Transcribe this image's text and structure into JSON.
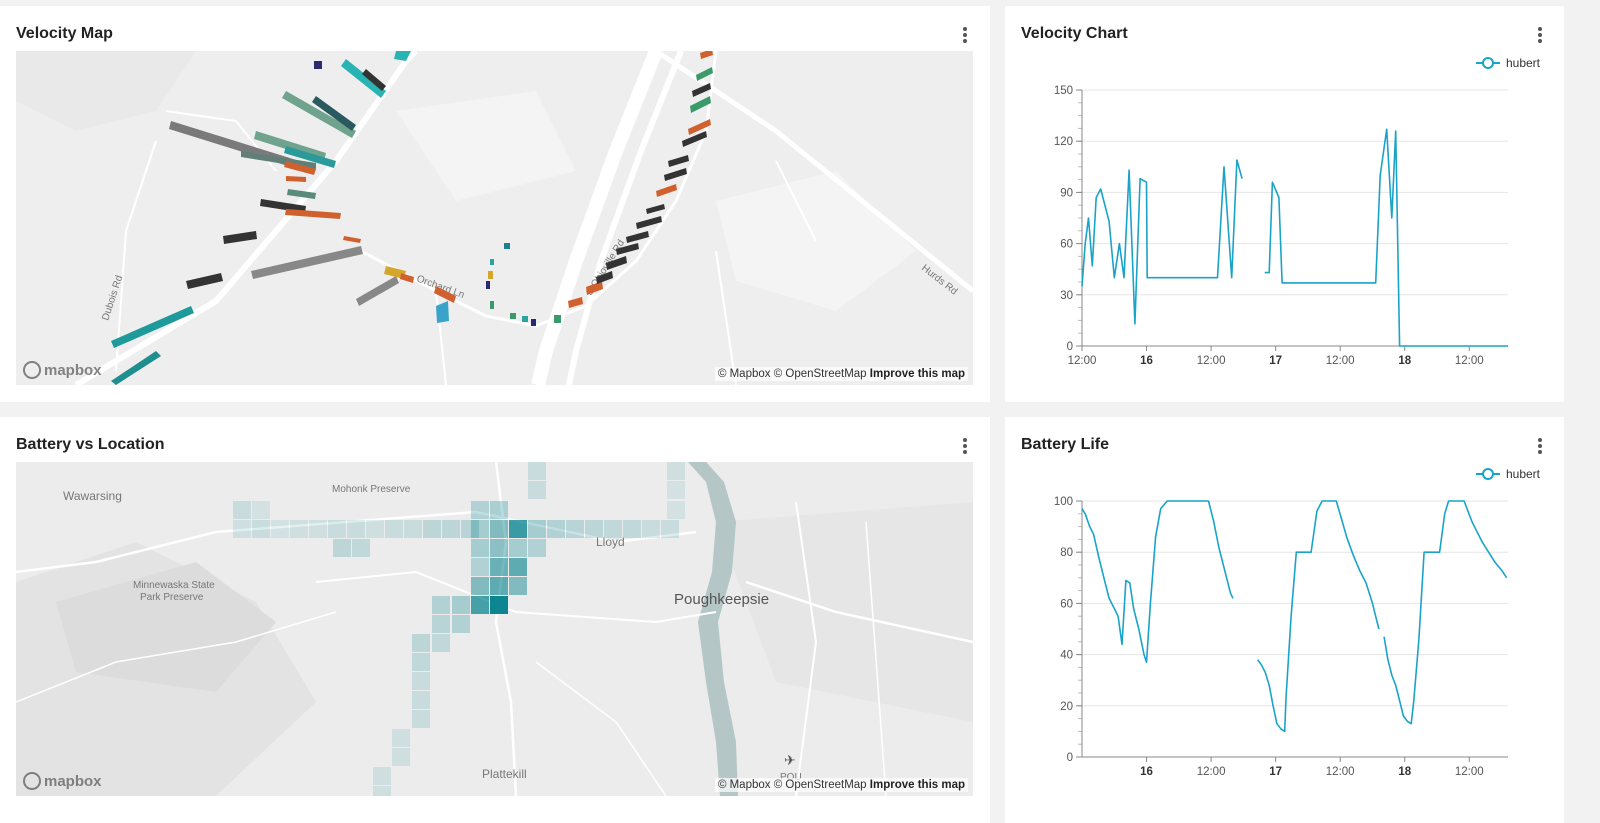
{
  "colors": {
    "accent": "#1aa3c9",
    "page_bg": "#f2f2f2",
    "card_bg": "#ffffff",
    "map_bg": "#eeeeee"
  },
  "velocity_map": {
    "title": "Velocity Map",
    "menu_icon": "kebab-vertical-icon",
    "roads": [
      "Dubois Rd",
      "Orchard Ln",
      "S Ohioville Rd",
      "Hurds Rd"
    ],
    "logo_text": "mapbox",
    "attribution": "© Mapbox © OpenStreetMap",
    "improve_link": "Improve this map"
  },
  "velocity_chart": {
    "title": "Velocity Chart",
    "menu_icon": "kebab-vertical-icon",
    "legend": "hubert"
  },
  "battery_map": {
    "title": "Battery vs Location",
    "menu_icon": "kebab-vertical-icon",
    "places": [
      "Wawarsing",
      "Mohonk Preserve",
      "Minnewaska State",
      "Park Preserve",
      "Lloyd",
      "Poughkeepsie",
      "Plattekill",
      "POU"
    ],
    "logo_text": "mapbox",
    "attribution": "© Mapbox © OpenStreetMap",
    "improve_link": "Improve this map"
  },
  "battery_chart": {
    "title": "Battery Life",
    "menu_icon": "kebab-vertical-icon",
    "legend": "hubert"
  },
  "chart_data": [
    {
      "type": "line",
      "title": "Velocity Chart",
      "series": [
        {
          "name": "hubert",
          "color": "#1aa3c9",
          "segments": [
            [
              [
                0,
                35
              ],
              [
                0.05,
                60
              ],
              [
                0.1,
                75
              ],
              [
                0.16,
                47
              ],
              [
                0.22,
                87
              ],
              [
                0.29,
                92
              ],
              [
                0.42,
                73
              ],
              [
                0.5,
                40
              ],
              [
                0.58,
                60
              ],
              [
                0.65,
                40
              ],
              [
                0.73,
                103
              ],
              [
                0.82,
                13
              ],
              [
                0.9,
                98
              ],
              [
                1,
                96
              ],
              [
                1.01,
                40
              ],
              [
                2.1,
                40
              ],
              [
                2.2,
                105
              ],
              [
                2.32,
                40
              ],
              [
                2.4,
                109
              ],
              [
                2.48,
                98
              ]
            ],
            [
              [
                2.83,
                43
              ],
              [
                2.9,
                43
              ],
              [
                2.95,
                96
              ],
              [
                3.05,
                87
              ],
              [
                3.1,
                37
              ],
              [
                4.55,
                37
              ],
              [
                4.62,
                100
              ],
              [
                4.72,
                127
              ],
              [
                4.8,
                75
              ],
              [
                4.86,
                126
              ],
              [
                4.92,
                0
              ],
              [
                6.6,
                0
              ]
            ]
          ]
        }
      ],
      "x_ticks": [
        {
          "x": 0,
          "label": "12:00",
          "bold": false
        },
        {
          "x": 1,
          "label": "16",
          "bold": true
        },
        {
          "x": 2,
          "label": "12:00",
          "bold": false
        },
        {
          "x": 3,
          "label": "17",
          "bold": true
        },
        {
          "x": 4,
          "label": "12:00",
          "bold": false
        },
        {
          "x": 5,
          "label": "18",
          "bold": true
        },
        {
          "x": 6,
          "label": "12:00",
          "bold": false
        }
      ],
      "x_range": [
        0,
        6.6
      ],
      "y_ticks": [
        0,
        30,
        60,
        90,
        120,
        150
      ],
      "ylim": [
        0,
        150
      ],
      "grid": true,
      "legend_position": "top-right"
    },
    {
      "type": "line",
      "title": "Battery Life",
      "series": [
        {
          "name": "hubert",
          "color": "#1aa3c9",
          "segments": [
            [
              [
                0,
                97
              ],
              [
                0.05,
                95
              ],
              [
                0.12,
                90
              ],
              [
                0.18,
                87
              ],
              [
                0.26,
                78
              ],
              [
                0.34,
                70
              ],
              [
                0.42,
                62
              ],
              [
                0.5,
                58
              ],
              [
                0.56,
                55
              ],
              [
                0.62,
                44
              ],
              [
                0.68,
                69
              ],
              [
                0.74,
                68
              ],
              [
                0.8,
                58
              ],
              [
                0.88,
                50
              ],
              [
                0.96,
                40
              ],
              [
                1,
                37
              ],
              [
                1.06,
                60
              ],
              [
                1.14,
                86
              ],
              [
                1.22,
                97
              ],
              [
                1.32,
                100
              ],
              [
                1.96,
                100
              ],
              [
                2.04,
                92
              ],
              [
                2.12,
                82
              ],
              [
                2.18,
                76
              ],
              [
                2.24,
                70
              ],
              [
                2.3,
                64
              ],
              [
                2.34,
                62
              ]
            ],
            [
              [
                2.72,
                38
              ],
              [
                2.78,
                36
              ],
              [
                2.84,
                33
              ],
              [
                2.9,
                28
              ],
              [
                2.96,
                20
              ],
              [
                3.02,
                13
              ],
              [
                3.08,
                11
              ],
              [
                3.14,
                10
              ],
              [
                3.16,
                23
              ]
            ],
            [
              [
                3.16,
                23
              ],
              [
                3.24,
                55
              ],
              [
                3.32,
                80
              ],
              [
                3.55,
                80
              ],
              [
                3.64,
                96
              ],
              [
                3.72,
                100
              ],
              [
                3.94,
                100
              ],
              [
                4.02,
                93
              ],
              [
                4.1,
                86
              ],
              [
                4.2,
                79
              ],
              [
                4.3,
                73
              ],
              [
                4.4,
                68
              ],
              [
                4.5,
                60
              ],
              [
                4.56,
                54
              ],
              [
                4.6,
                50
              ]
            ],
            [
              [
                4.68,
                47
              ],
              [
                4.74,
                38
              ],
              [
                4.8,
                32
              ],
              [
                4.86,
                28
              ],
              [
                4.92,
                22
              ],
              [
                4.98,
                16
              ],
              [
                5.04,
                14
              ],
              [
                5.1,
                13
              ],
              [
                5.14,
                22
              ],
              [
                5.22,
                46
              ],
              [
                5.3,
                80
              ],
              [
                5.54,
                80
              ],
              [
                5.62,
                95
              ],
              [
                5.68,
                100
              ],
              [
                5.92,
                100
              ],
              [
                5.98,
                96
              ],
              [
                6.04,
                92
              ],
              [
                6.12,
                88
              ],
              [
                6.2,
                84
              ],
              [
                6.3,
                80
              ],
              [
                6.4,
                76
              ],
              [
                6.5,
                73
              ],
              [
                6.58,
                70
              ]
            ]
          ]
        }
      ],
      "x_ticks": [
        {
          "x": 1,
          "label": "16",
          "bold": true
        },
        {
          "x": 2,
          "label": "12:00",
          "bold": false
        },
        {
          "x": 3,
          "label": "17",
          "bold": true
        },
        {
          "x": 4,
          "label": "12:00",
          "bold": false
        },
        {
          "x": 5,
          "label": "18",
          "bold": true
        },
        {
          "x": 6,
          "label": "12:00",
          "bold": false
        }
      ],
      "x_range": [
        0,
        6.6
      ],
      "y_ticks": [
        0,
        20,
        40,
        60,
        80,
        100
      ],
      "ylim": [
        0,
        100
      ],
      "grid": true,
      "legend_position": "top-right"
    }
  ]
}
